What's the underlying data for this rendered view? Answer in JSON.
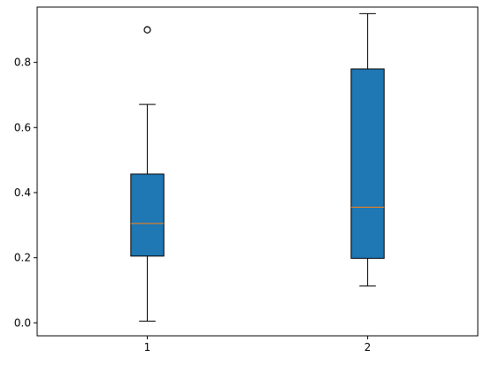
{
  "chart_data": {
    "type": "boxplot",
    "categories": [
      "1",
      "2"
    ],
    "boxes": [
      {
        "category": "1",
        "whisker_low": 0.005,
        "q1": 0.205,
        "median": 0.305,
        "q3": 0.457,
        "whisker_high": 0.671,
        "outliers": [
          0.9
        ]
      },
      {
        "category": "2",
        "whisker_low": 0.113,
        "q1": 0.198,
        "median": 0.355,
        "q3": 0.78,
        "whisker_high": 0.95,
        "outliers": []
      }
    ],
    "ylim": [
      -0.04,
      0.97
    ],
    "yticks": [
      0.0,
      0.2,
      0.4,
      0.6,
      0.8
    ],
    "ytick_labels": [
      "0.0",
      "0.2",
      "0.4",
      "0.6",
      "0.8"
    ],
    "xlim": [
      0.5,
      2.5
    ],
    "title": "",
    "xlabel": "",
    "ylabel": "",
    "grid": false,
    "colors": {
      "box_fill": "#1f77b4",
      "median": "#ff7f0e",
      "line": "#000000"
    }
  }
}
